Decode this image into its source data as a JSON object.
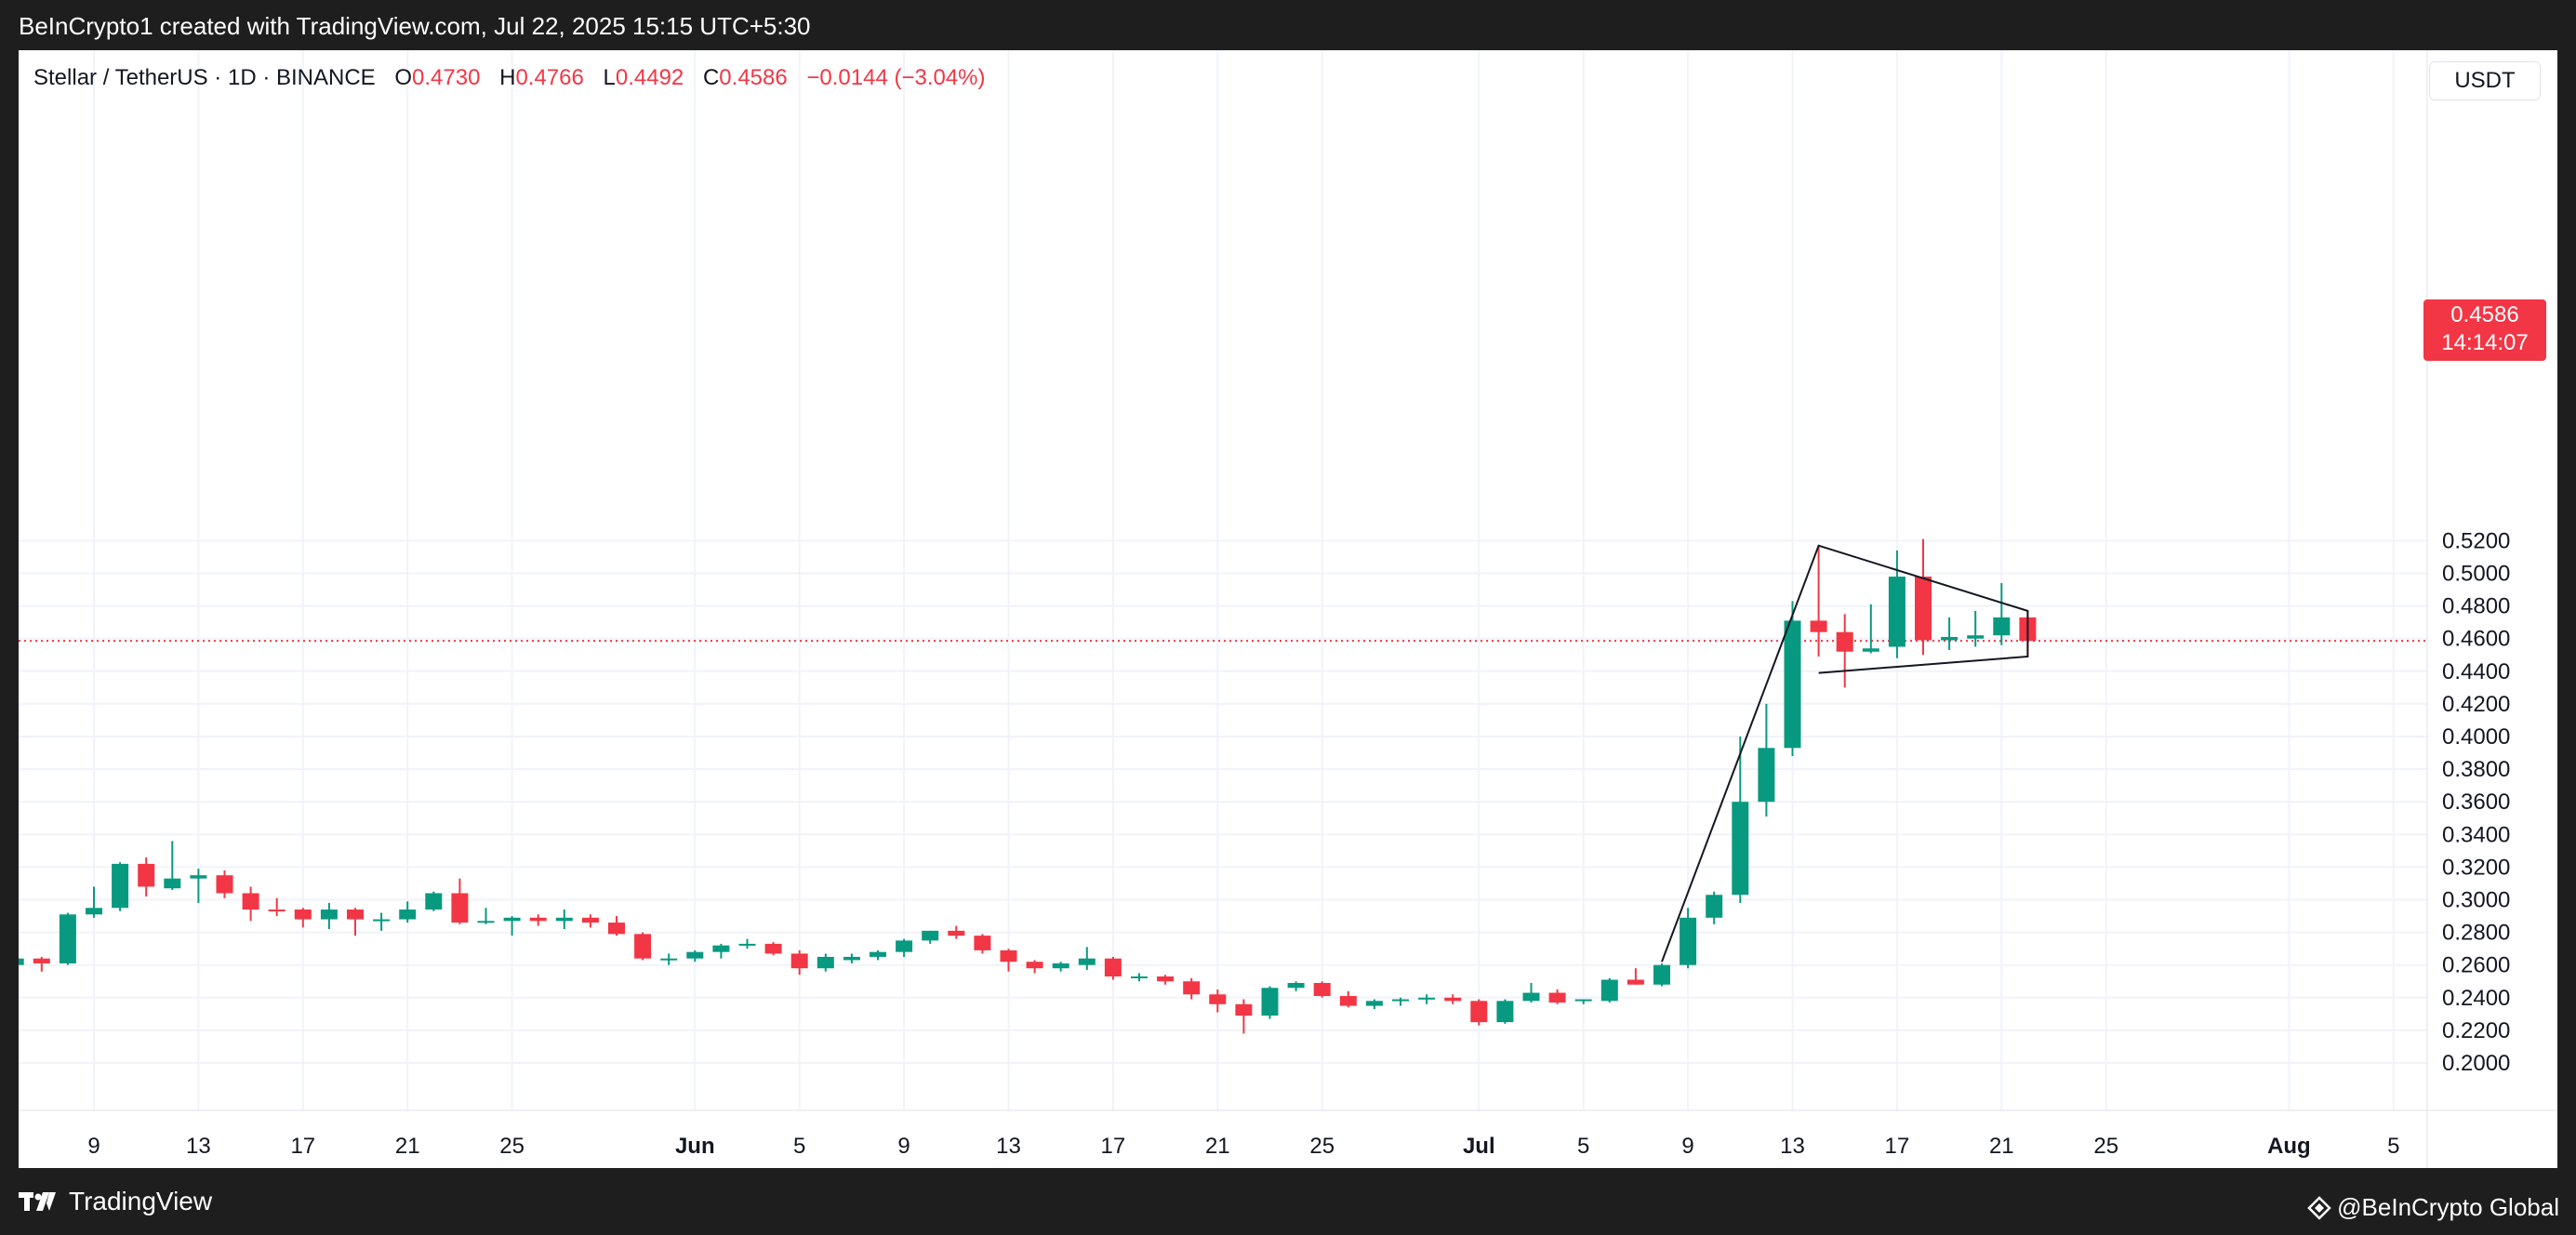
{
  "header": {
    "caption": "BeInCrypto1 created with TradingView.com, Jul 22, 2025 15:15 UTC+5:30"
  },
  "legend": {
    "symbol": "Stellar / TetherUS · 1D · BINANCE",
    "open_label": "O",
    "open_value": "0.4730",
    "high_label": "H",
    "high_value": "0.4766",
    "low_label": "L",
    "low_value": "0.4492",
    "close_label": "C",
    "close_value": "0.4586",
    "change": "−0.0144 (−3.04%)"
  },
  "currency": "USDT",
  "last_price": {
    "value": "0.4586",
    "countdown": "14:14:07",
    "price": 0.4586
  },
  "footer": {
    "brand_left": "TradingView",
    "brand_right": "@BeInCrypto Global"
  },
  "colors": {
    "up": "#089981",
    "down": "#f23645",
    "grid": "#f0f3fa",
    "text": "#131722"
  },
  "icons": [
    "tradingview-logo-icon",
    "beincrypto-logo-icon"
  ],
  "chart_data": {
    "type": "candlestick",
    "title": "Stellar / TetherUS · 1D · BINANCE",
    "ylim": [
      0.18,
      0.535
    ],
    "xlim": [
      "2025-05-06",
      "2025-08-06"
    ],
    "grid": true,
    "y_ticks": [
      "0.2000",
      "0.2200",
      "0.2400",
      "0.2600",
      "0.2800",
      "0.3000",
      "0.3200",
      "0.3400",
      "0.3600",
      "0.3800",
      "0.4000",
      "0.4200",
      "0.4400",
      "0.4600",
      "0.4800",
      "0.5000",
      "0.5200"
    ],
    "x_ticks": [
      {
        "date": "2025-05-09",
        "label": "9"
      },
      {
        "date": "2025-05-13",
        "label": "13"
      },
      {
        "date": "2025-05-17",
        "label": "17"
      },
      {
        "date": "2025-05-21",
        "label": "21"
      },
      {
        "date": "2025-05-25",
        "label": "25"
      },
      {
        "date": "2025-06-01",
        "label": "Jun"
      },
      {
        "date": "2025-06-05",
        "label": "5"
      },
      {
        "date": "2025-06-09",
        "label": "9"
      },
      {
        "date": "2025-06-13",
        "label": "13"
      },
      {
        "date": "2025-06-17",
        "label": "17"
      },
      {
        "date": "2025-06-21",
        "label": "21"
      },
      {
        "date": "2025-06-25",
        "label": "25"
      },
      {
        "date": "2025-07-01",
        "label": "Jul"
      },
      {
        "date": "2025-07-05",
        "label": "5"
      },
      {
        "date": "2025-07-09",
        "label": "9"
      },
      {
        "date": "2025-07-13",
        "label": "13"
      },
      {
        "date": "2025-07-17",
        "label": "17"
      },
      {
        "date": "2025-07-21",
        "label": "21"
      },
      {
        "date": "2025-07-25",
        "label": "25"
      },
      {
        "date": "2025-08-01",
        "label": "Aug"
      },
      {
        "date": "2025-08-05",
        "label": "5"
      }
    ],
    "columns": [
      "date",
      "open",
      "high",
      "low",
      "close"
    ],
    "candles": [
      [
        "2025-05-06",
        0.26,
        0.266,
        0.257,
        0.264
      ],
      [
        "2025-05-07",
        0.264,
        0.265,
        0.256,
        0.261
      ],
      [
        "2025-05-08",
        0.261,
        0.292,
        0.26,
        0.291
      ],
      [
        "2025-05-09",
        0.291,
        0.308,
        0.289,
        0.295
      ],
      [
        "2025-05-10",
        0.295,
        0.323,
        0.293,
        0.322
      ],
      [
        "2025-05-11",
        0.322,
        0.326,
        0.302,
        0.308
      ],
      [
        "2025-05-12",
        0.307,
        0.336,
        0.306,
        0.313
      ],
      [
        "2025-05-13",
        0.313,
        0.319,
        0.298,
        0.315
      ],
      [
        "2025-05-14",
        0.315,
        0.318,
        0.301,
        0.304
      ],
      [
        "2025-05-15",
        0.304,
        0.308,
        0.287,
        0.294
      ],
      [
        "2025-05-16",
        0.294,
        0.301,
        0.29,
        0.293
      ],
      [
        "2025-05-17",
        0.294,
        0.295,
        0.283,
        0.288
      ],
      [
        "2025-05-18",
        0.288,
        0.298,
        0.282,
        0.294
      ],
      [
        "2025-05-19",
        0.294,
        0.295,
        0.278,
        0.288
      ],
      [
        "2025-05-20",
        0.287,
        0.292,
        0.281,
        0.288
      ],
      [
        "2025-05-21",
        0.288,
        0.299,
        0.286,
        0.294
      ],
      [
        "2025-05-22",
        0.294,
        0.305,
        0.293,
        0.304
      ],
      [
        "2025-05-23",
        0.304,
        0.313,
        0.285,
        0.286
      ],
      [
        "2025-05-24",
        0.286,
        0.295,
        0.285,
        0.287
      ],
      [
        "2025-05-25",
        0.287,
        0.29,
        0.278,
        0.289
      ],
      [
        "2025-05-26",
        0.289,
        0.291,
        0.284,
        0.287
      ],
      [
        "2025-05-27",
        0.287,
        0.294,
        0.282,
        0.289
      ],
      [
        "2025-05-28",
        0.289,
        0.291,
        0.283,
        0.286
      ],
      [
        "2025-05-29",
        0.286,
        0.29,
        0.278,
        0.279
      ],
      [
        "2025-05-30",
        0.279,
        0.28,
        0.263,
        0.264
      ],
      [
        "2025-05-31",
        0.264,
        0.267,
        0.26,
        0.264
      ],
      [
        "2025-06-01",
        0.264,
        0.269,
        0.262,
        0.268
      ],
      [
        "2025-06-02",
        0.268,
        0.273,
        0.264,
        0.272
      ],
      [
        "2025-06-03",
        0.272,
        0.276,
        0.27,
        0.273
      ],
      [
        "2025-06-04",
        0.273,
        0.274,
        0.266,
        0.267
      ],
      [
        "2025-06-05",
        0.267,
        0.269,
        0.254,
        0.258
      ],
      [
        "2025-06-06",
        0.258,
        0.267,
        0.256,
        0.265
      ],
      [
        "2025-06-07",
        0.263,
        0.267,
        0.261,
        0.265
      ],
      [
        "2025-06-08",
        0.265,
        0.269,
        0.263,
        0.268
      ],
      [
        "2025-06-09",
        0.268,
        0.276,
        0.265,
        0.275
      ],
      [
        "2025-06-10",
        0.275,
        0.281,
        0.273,
        0.281
      ],
      [
        "2025-06-11",
        0.281,
        0.284,
        0.276,
        0.278
      ],
      [
        "2025-06-12",
        0.278,
        0.279,
        0.267,
        0.269
      ],
      [
        "2025-06-13",
        0.269,
        0.27,
        0.256,
        0.262
      ],
      [
        "2025-06-14",
        0.262,
        0.263,
        0.255,
        0.258
      ],
      [
        "2025-06-15",
        0.258,
        0.262,
        0.256,
        0.261
      ],
      [
        "2025-06-16",
        0.26,
        0.271,
        0.257,
        0.264
      ],
      [
        "2025-06-17",
        0.264,
        0.265,
        0.251,
        0.253
      ],
      [
        "2025-06-18",
        0.253,
        0.255,
        0.25,
        0.253
      ],
      [
        "2025-06-19",
        0.253,
        0.254,
        0.248,
        0.25
      ],
      [
        "2025-06-20",
        0.25,
        0.252,
        0.239,
        0.242
      ],
      [
        "2025-06-21",
        0.242,
        0.245,
        0.231,
        0.236
      ],
      [
        "2025-06-22",
        0.236,
        0.239,
        0.218,
        0.229
      ],
      [
        "2025-06-23",
        0.229,
        0.247,
        0.227,
        0.246
      ],
      [
        "2025-06-24",
        0.246,
        0.25,
        0.244,
        0.249
      ],
      [
        "2025-06-25",
        0.249,
        0.25,
        0.24,
        0.241
      ],
      [
        "2025-06-26",
        0.241,
        0.244,
        0.234,
        0.235
      ],
      [
        "2025-06-27",
        0.235,
        0.239,
        0.233,
        0.238
      ],
      [
        "2025-06-28",
        0.238,
        0.24,
        0.235,
        0.239
      ],
      [
        "2025-06-29",
        0.239,
        0.242,
        0.236,
        0.24
      ],
      [
        "2025-06-30",
        0.24,
        0.242,
        0.236,
        0.238
      ],
      [
        "2025-07-01",
        0.238,
        0.239,
        0.223,
        0.225
      ],
      [
        "2025-07-02",
        0.225,
        0.239,
        0.224,
        0.238
      ],
      [
        "2025-07-03",
        0.238,
        0.249,
        0.237,
        0.243
      ],
      [
        "2025-07-04",
        0.243,
        0.245,
        0.236,
        0.237
      ],
      [
        "2025-07-05",
        0.238,
        0.239,
        0.236,
        0.239
      ],
      [
        "2025-07-06",
        0.238,
        0.252,
        0.237,
        0.251
      ],
      [
        "2025-07-07",
        0.251,
        0.258,
        0.248,
        0.248
      ],
      [
        "2025-07-08",
        0.248,
        0.261,
        0.247,
        0.26
      ],
      [
        "2025-07-09",
        0.26,
        0.295,
        0.258,
        0.289
      ],
      [
        "2025-07-10",
        0.289,
        0.305,
        0.285,
        0.303
      ],
      [
        "2025-07-11",
        0.303,
        0.4,
        0.298,
        0.36
      ],
      [
        "2025-07-12",
        0.36,
        0.42,
        0.351,
        0.393
      ],
      [
        "2025-07-13",
        0.393,
        0.483,
        0.388,
        0.471
      ],
      [
        "2025-07-14",
        0.471,
        0.517,
        0.449,
        0.464
      ],
      [
        "2025-07-15",
        0.464,
        0.475,
        0.43,
        0.452
      ],
      [
        "2025-07-16",
        0.452,
        0.481,
        0.451,
        0.454
      ],
      [
        "2025-07-17",
        0.455,
        0.514,
        0.448,
        0.498
      ],
      [
        "2025-07-18",
        0.498,
        0.521,
        0.45,
        0.459
      ],
      [
        "2025-07-19",
        0.459,
        0.473,
        0.453,
        0.461
      ],
      [
        "2025-07-20",
        0.46,
        0.477,
        0.455,
        0.462
      ],
      [
        "2025-07-21",
        0.462,
        0.494,
        0.456,
        0.473
      ],
      [
        "2025-07-22",
        0.473,
        0.4766,
        0.4492,
        0.4586
      ]
    ],
    "annotations": [
      {
        "type": "polyline",
        "points": [
          [
            "2025-07-08",
            0.262
          ],
          [
            "2025-07-14",
            0.517
          ],
          [
            "2025-07-22",
            0.477
          ],
          [
            "2025-07-22",
            0.449
          ],
          [
            "2025-07-14",
            0.439
          ]
        ]
      },
      {
        "type": "hline",
        "style": "dotted",
        "y": 0.4586
      }
    ]
  }
}
